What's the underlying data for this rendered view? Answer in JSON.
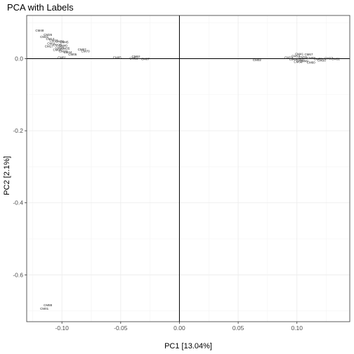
{
  "chart_data": {
    "type": "scatter",
    "title": "PCA with Labels",
    "xlabel": "PC1 [13.04%]",
    "ylabel": "PC2 [2.1%]",
    "xlim": [
      -0.13,
      0.145
    ],
    "ylim": [
      -0.73,
      0.12
    ],
    "x_ticks": [
      -0.1,
      -0.05,
      0.0,
      0.05,
      0.1
    ],
    "x_tick_labels": [
      "-0.10",
      "-0.05",
      "0.00",
      "0.05",
      "0.10"
    ],
    "y_ticks": [
      0.0,
      -0.2,
      -0.4,
      -0.6
    ],
    "y_tick_labels": [
      "0.0",
      "-0.2",
      "-0.4",
      "-0.6"
    ],
    "grid": true,
    "reference_lines": {
      "x": 0.0,
      "y": 0.0
    },
    "points": [
      {
        "label": "CM48",
        "x": -0.119,
        "y": 0.078
      },
      {
        "label": "CM26",
        "x": -0.112,
        "y": 0.066
      },
      {
        "label": "CM21",
        "x": -0.115,
        "y": 0.061
      },
      {
        "label": "CM14",
        "x": -0.11,
        "y": 0.055
      },
      {
        "label": "CM33",
        "x": -0.107,
        "y": 0.05
      },
      {
        "label": "CM38",
        "x": -0.102,
        "y": 0.048
      },
      {
        "label": "CM45",
        "x": -0.098,
        "y": 0.046
      },
      {
        "label": "CM11",
        "x": -0.109,
        "y": 0.042
      },
      {
        "label": "CM29",
        "x": -0.104,
        "y": 0.038
      },
      {
        "label": "CM40",
        "x": -0.099,
        "y": 0.036
      },
      {
        "label": "CM17",
        "x": -0.111,
        "y": 0.034
      },
      {
        "label": "CM22",
        "x": -0.102,
        "y": 0.03
      },
      {
        "label": "CM35",
        "x": -0.097,
        "y": 0.028
      },
      {
        "label": "CM08",
        "x": -0.104,
        "y": 0.024
      },
      {
        "label": "CM19",
        "x": -0.099,
        "y": 0.021
      },
      {
        "label": "CM44",
        "x": -0.095,
        "y": 0.018
      },
      {
        "label": "CM57",
        "x": -0.083,
        "y": 0.025
      },
      {
        "label": "CM70",
        "x": -0.08,
        "y": 0.021
      },
      {
        "label": "CM05",
        "x": -0.091,
        "y": 0.012
      },
      {
        "label": "CM81",
        "x": -0.1,
        "y": 0.003
      },
      {
        "label": "CM65",
        "x": -0.053,
        "y": 0.003
      },
      {
        "label": "CM62",
        "x": -0.037,
        "y": 0.006
      },
      {
        "label": "CM51",
        "x": -0.039,
        "y": 0.001
      },
      {
        "label": "CM07",
        "x": -0.029,
        "y": -0.001
      },
      {
        "label": "CM02",
        "x": 0.066,
        "y": -0.004
      },
      {
        "label": "CM41",
        "x": 0.102,
        "y": 0.013
      },
      {
        "label": "CM67",
        "x": 0.11,
        "y": 0.012
      },
      {
        "label": "CM13",
        "x": 0.099,
        "y": 0.007
      },
      {
        "label": "CM24",
        "x": 0.093,
        "y": 0.003
      },
      {
        "label": "CM36",
        "x": 0.105,
        "y": 0.004
      },
      {
        "label": "CM58",
        "x": 0.112,
        "y": 0.002
      },
      {
        "label": "CM73",
        "x": 0.118,
        "y": -0.001
      },
      {
        "label": "CM09",
        "x": 0.097,
        "y": -0.002
      },
      {
        "label": "CM15",
        "x": 0.103,
        "y": -0.003
      },
      {
        "label": "CM27",
        "x": 0.127,
        "y": 0.001
      },
      {
        "label": "CM32",
        "x": 0.133,
        "y": -0.001
      },
      {
        "label": "CM30",
        "x": 0.121,
        "y": -0.005
      },
      {
        "label": "CM49",
        "x": 0.106,
        "y": -0.007
      },
      {
        "label": "CM60",
        "x": 0.112,
        "y": -0.011
      },
      {
        "label": "CM53",
        "x": 0.101,
        "y": -0.009
      },
      {
        "label": "CM88",
        "x": -0.112,
        "y": -0.684
      },
      {
        "label": "CM01",
        "x": -0.115,
        "y": -0.694
      }
    ]
  }
}
